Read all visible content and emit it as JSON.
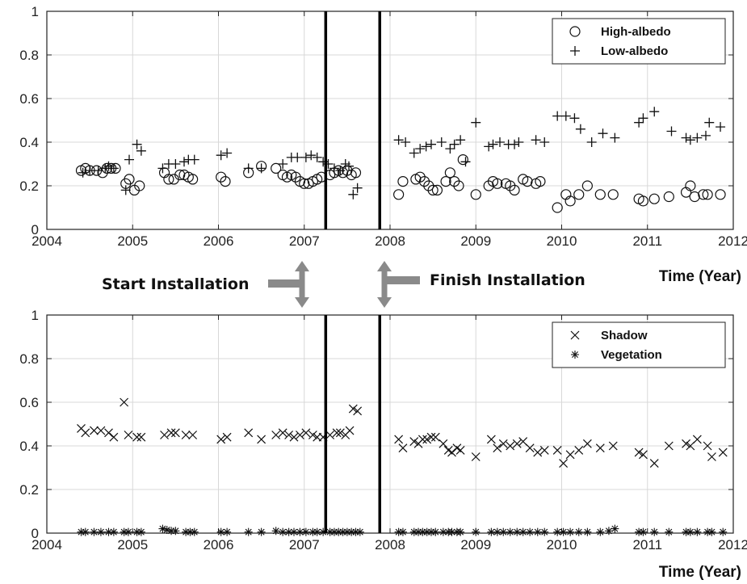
{
  "annotations": {
    "start": "Start Installation",
    "finish": "Finish Installation",
    "start_year": 2007.25,
    "finish_year": 2007.88
  },
  "chart_data": [
    {
      "type": "scatter",
      "xlabel": "Time (Year)",
      "ylabel": "",
      "xlim": [
        2004,
        2012
      ],
      "ylim": [
        0,
        1
      ],
      "xticks": [
        "2004",
        "2005",
        "2006",
        "2007",
        "2008",
        "2009",
        "2010",
        "2011",
        "2012"
      ],
      "yticks": [
        "0",
        "0.2",
        "0.4",
        "0.6",
        "0.8",
        "1"
      ],
      "grid": true,
      "legend": "top-right",
      "series": [
        {
          "name": "High-albedo",
          "marker": "circle",
          "x": [
            2004.4,
            2004.45,
            2004.5,
            2004.58,
            2004.65,
            2004.7,
            2004.75,
            2004.8,
            2004.92,
            2004.96,
            2005.02,
            2005.08,
            2005.37,
            2005.42,
            2005.48,
            2005.55,
            2005.6,
            2005.65,
            2005.7,
            2006.03,
            2006.08,
            2006.35,
            2006.5,
            2006.67,
            2006.75,
            2006.8,
            2006.85,
            2006.9,
            2006.95,
            2007.0,
            2007.05,
            2007.1,
            2007.15,
            2007.2,
            2007.3,
            2007.35,
            2007.4,
            2007.45,
            2007.5,
            2007.55,
            2007.6,
            2008.1,
            2008.15,
            2008.3,
            2008.35,
            2008.4,
            2008.45,
            2008.5,
            2008.55,
            2008.65,
            2008.7,
            2008.75,
            2008.8,
            2008.85,
            2009.0,
            2009.15,
            2009.2,
            2009.25,
            2009.35,
            2009.4,
            2009.45,
            2009.55,
            2009.6,
            2009.7,
            2009.75,
            2009.95,
            2010.05,
            2010.1,
            2010.2,
            2010.3,
            2010.45,
            2010.6,
            2010.9,
            2010.95,
            2011.08,
            2011.25,
            2011.45,
            2011.5,
            2011.55,
            2011.65,
            2011.7,
            2011.85
          ],
          "y": [
            0.27,
            0.28,
            0.27,
            0.27,
            0.26,
            0.28,
            0.28,
            0.28,
            0.21,
            0.23,
            0.18,
            0.2,
            0.26,
            0.23,
            0.23,
            0.25,
            0.25,
            0.24,
            0.23,
            0.24,
            0.22,
            0.26,
            0.29,
            0.28,
            0.25,
            0.24,
            0.25,
            0.24,
            0.22,
            0.21,
            0.21,
            0.22,
            0.23,
            0.24,
            0.25,
            0.26,
            0.27,
            0.26,
            0.27,
            0.25,
            0.26,
            0.16,
            0.22,
            0.23,
            0.24,
            0.22,
            0.2,
            0.18,
            0.18,
            0.22,
            0.26,
            0.22,
            0.2,
            0.32,
            0.16,
            0.2,
            0.22,
            0.21,
            0.21,
            0.2,
            0.18,
            0.23,
            0.22,
            0.21,
            0.22,
            0.1,
            0.16,
            0.13,
            0.16,
            0.2,
            0.16,
            0.16,
            0.14,
            0.13,
            0.14,
            0.15,
            0.17,
            0.2,
            0.15,
            0.16,
            0.16,
            0.16
          ]
        },
        {
          "name": "Low-albedo",
          "marker": "plus",
          "x": [
            2004.42,
            2004.5,
            2004.6,
            2004.68,
            2004.72,
            2004.78,
            2004.92,
            2004.96,
            2005.05,
            2005.1,
            2005.35,
            2005.42,
            2005.5,
            2005.6,
            2005.65,
            2005.72,
            2006.03,
            2006.1,
            2006.35,
            2006.5,
            2006.75,
            2006.85,
            2006.92,
            2007.02,
            2007.08,
            2007.15,
            2007.22,
            2007.28,
            2007.35,
            2007.42,
            2007.48,
            2007.52,
            2007.57,
            2007.62,
            2008.1,
            2008.18,
            2008.28,
            2008.35,
            2008.42,
            2008.48,
            2008.6,
            2008.7,
            2008.75,
            2008.82,
            2008.88,
            2009.0,
            2009.15,
            2009.2,
            2009.28,
            2009.38,
            2009.45,
            2009.5,
            2009.7,
            2009.8,
            2009.95,
            2010.05,
            2010.15,
            2010.22,
            2010.35,
            2010.48,
            2010.62,
            2010.9,
            2010.95,
            2011.08,
            2011.28,
            2011.45,
            2011.5,
            2011.58,
            2011.68,
            2011.72,
            2011.85
          ],
          "y": [
            0.26,
            0.27,
            0.27,
            0.28,
            0.29,
            0.28,
            0.18,
            0.32,
            0.39,
            0.36,
            0.28,
            0.3,
            0.3,
            0.31,
            0.32,
            0.32,
            0.34,
            0.35,
            0.28,
            0.28,
            0.3,
            0.33,
            0.33,
            0.33,
            0.34,
            0.33,
            0.31,
            0.3,
            0.28,
            0.27,
            0.3,
            0.29,
            0.16,
            0.19,
            0.41,
            0.4,
            0.35,
            0.37,
            0.38,
            0.39,
            0.4,
            0.37,
            0.39,
            0.41,
            0.31,
            0.49,
            0.38,
            0.39,
            0.4,
            0.39,
            0.39,
            0.4,
            0.41,
            0.4,
            0.52,
            0.52,
            0.51,
            0.46,
            0.4,
            0.44,
            0.42,
            0.49,
            0.51,
            0.54,
            0.45,
            0.42,
            0.41,
            0.42,
            0.43,
            0.49,
            0.47
          ]
        }
      ]
    },
    {
      "type": "scatter",
      "xlabel": "Time (Year)",
      "ylabel": "",
      "xlim": [
        2004,
        2012
      ],
      "ylim": [
        0,
        1
      ],
      "xticks": [
        "2004",
        "2005",
        "2006",
        "2007",
        "2008",
        "2009",
        "2010",
        "2011",
        "2012"
      ],
      "yticks": [
        "0",
        "0.2",
        "0.4",
        "0.6",
        "0.8",
        "1"
      ],
      "grid": true,
      "legend": "top-right",
      "series": [
        {
          "name": "Shadow",
          "marker": "x",
          "x": [
            2004.4,
            2004.45,
            2004.55,
            2004.63,
            2004.72,
            2004.78,
            2004.9,
            2004.95,
            2005.05,
            2005.1,
            2005.37,
            2005.45,
            2005.5,
            2005.62,
            2005.7,
            2006.03,
            2006.1,
            2006.35,
            2006.5,
            2006.67,
            2006.75,
            2006.82,
            2006.88,
            2006.95,
            2007.02,
            2007.1,
            2007.15,
            2007.22,
            2007.3,
            2007.38,
            2007.42,
            2007.48,
            2007.53,
            2007.57,
            2007.62,
            2008.1,
            2008.15,
            2008.28,
            2008.33,
            2008.38,
            2008.43,
            2008.48,
            2008.53,
            2008.62,
            2008.68,
            2008.72,
            2008.78,
            2008.82,
            2009.0,
            2009.18,
            2009.25,
            2009.32,
            2009.4,
            2009.48,
            2009.55,
            2009.63,
            2009.72,
            2009.8,
            2009.95,
            2010.02,
            2010.1,
            2010.2,
            2010.3,
            2010.45,
            2010.6,
            2010.9,
            2010.95,
            2011.08,
            2011.25,
            2011.45,
            2011.5,
            2011.58,
            2011.7,
            2011.75,
            2011.88
          ],
          "y": [
            0.48,
            0.46,
            0.47,
            0.47,
            0.46,
            0.44,
            0.6,
            0.45,
            0.44,
            0.44,
            0.45,
            0.46,
            0.46,
            0.45,
            0.45,
            0.43,
            0.44,
            0.46,
            0.43,
            0.45,
            0.46,
            0.45,
            0.44,
            0.45,
            0.46,
            0.45,
            0.44,
            0.44,
            0.45,
            0.46,
            0.46,
            0.45,
            0.47,
            0.57,
            0.56,
            0.43,
            0.39,
            0.42,
            0.41,
            0.43,
            0.43,
            0.44,
            0.44,
            0.41,
            0.38,
            0.37,
            0.39,
            0.38,
            0.35,
            0.43,
            0.39,
            0.41,
            0.4,
            0.41,
            0.42,
            0.39,
            0.37,
            0.38,
            0.38,
            0.32,
            0.36,
            0.38,
            0.41,
            0.39,
            0.4,
            0.37,
            0.36,
            0.32,
            0.4,
            0.41,
            0.4,
            0.43,
            0.4,
            0.35,
            0.37
          ]
        },
        {
          "name": "Vegetation",
          "marker": "asterisk",
          "x": [
            2004.4,
            2004.45,
            2004.55,
            2004.63,
            2004.72,
            2004.78,
            2004.9,
            2004.95,
            2005.05,
            2005.1,
            2005.35,
            2005.4,
            2005.45,
            2005.5,
            2005.62,
            2005.67,
            2005.72,
            2006.03,
            2006.1,
            2006.35,
            2006.5,
            2006.67,
            2006.75,
            2006.82,
            2006.88,
            2006.95,
            2007.02,
            2007.1,
            2007.15,
            2007.22,
            2007.3,
            2007.35,
            2007.4,
            2007.45,
            2007.5,
            2007.55,
            2007.6,
            2007.65,
            2008.1,
            2008.15,
            2008.28,
            2008.33,
            2008.38,
            2008.43,
            2008.48,
            2008.53,
            2008.62,
            2008.68,
            2008.72,
            2008.78,
            2008.82,
            2009.0,
            2009.18,
            2009.25,
            2009.32,
            2009.4,
            2009.48,
            2009.55,
            2009.63,
            2009.72,
            2009.8,
            2009.95,
            2010.02,
            2010.1,
            2010.2,
            2010.3,
            2010.45,
            2010.55,
            2010.62,
            2010.9,
            2010.95,
            2011.08,
            2011.25,
            2011.45,
            2011.5,
            2011.58,
            2011.7,
            2011.75,
            2011.88
          ],
          "y": [
            0.005,
            0.005,
            0.005,
            0.005,
            0.005,
            0.005,
            0.005,
            0.005,
            0.005,
            0.005,
            0.02,
            0.015,
            0.01,
            0.01,
            0.005,
            0.005,
            0.005,
            0.005,
            0.005,
            0.005,
            0.005,
            0.01,
            0.005,
            0.005,
            0.005,
            0.005,
            0.005,
            0.005,
            0.005,
            0.005,
            0.005,
            0.005,
            0.005,
            0.005,
            0.005,
            0.005,
            0.005,
            0.005,
            0.005,
            0.005,
            0.005,
            0.005,
            0.005,
            0.005,
            0.005,
            0.005,
            0.005,
            0.005,
            0.005,
            0.005,
            0.005,
            0.005,
            0.005,
            0.005,
            0.005,
            0.005,
            0.005,
            0.005,
            0.005,
            0.005,
            0.005,
            0.005,
            0.005,
            0.005,
            0.005,
            0.005,
            0.005,
            0.01,
            0.02,
            0.005,
            0.005,
            0.005,
            0.005,
            0.005,
            0.005,
            0.005,
            0.005,
            0.005,
            0.005
          ]
        }
      ]
    }
  ]
}
